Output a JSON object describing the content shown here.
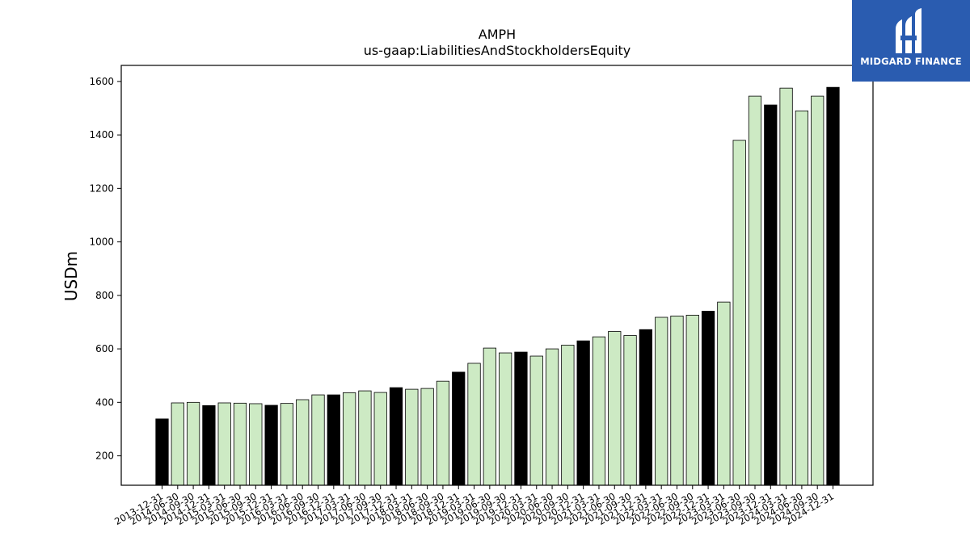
{
  "chart_data": {
    "type": "bar",
    "title": "AMPH",
    "subtitle": "us-gaap:LiabilitiesAndStockholdersEquity",
    "ylabel": "USDm",
    "xlabel": "",
    "ylim": [
      90,
      1660
    ],
    "yticks": [
      200,
      400,
      600,
      800,
      1000,
      1200,
      1400,
      1600
    ],
    "grid": false,
    "colors": {
      "annual": "#000000",
      "quarterly": "#cdeac4",
      "edge": "#000000"
    },
    "categories": [
      "2013-12-31",
      "2014-06-30",
      "2014-09-30",
      "2014-12-31",
      "2015-03-31",
      "2015-06-30",
      "2015-09-30",
      "2015-12-31",
      "2016-03-31",
      "2016-06-30",
      "2016-09-30",
      "2016-12-31",
      "2017-03-31",
      "2017-06-30",
      "2017-09-30",
      "2017-12-31",
      "2018-03-31",
      "2018-06-30",
      "2018-09-30",
      "2018-12-31",
      "2019-03-31",
      "2019-06-30",
      "2019-09-30",
      "2019-12-31",
      "2020-03-31",
      "2020-06-30",
      "2020-09-30",
      "2020-12-31",
      "2021-03-31",
      "2021-06-30",
      "2021-09-30",
      "2021-12-31",
      "2022-03-31",
      "2022-06-30",
      "2022-09-30",
      "2022-12-31",
      "2023-03-31",
      "2023-06-30",
      "2023-09-30",
      "2023-12-31",
      "2024-03-31",
      "2024-06-30",
      "2024-09-30",
      "2024-12-31"
    ],
    "values": [
      338,
      398,
      400,
      388,
      398,
      397,
      395,
      389,
      396,
      410,
      428,
      428,
      436,
      443,
      437,
      455,
      449,
      452,
      479,
      513,
      546,
      603,
      585,
      588,
      573,
      600,
      614,
      630,
      645,
      665,
      650,
      672,
      718,
      723,
      726,
      741,
      775,
      1380,
      1545,
      1512,
      1575,
      1490,
      1545,
      1578
    ],
    "annual": [
      true,
      false,
      false,
      true,
      false,
      false,
      false,
      true,
      false,
      false,
      false,
      true,
      false,
      false,
      false,
      true,
      false,
      false,
      false,
      true,
      false,
      false,
      false,
      true,
      false,
      false,
      false,
      true,
      false,
      false,
      false,
      true,
      false,
      false,
      false,
      true,
      false,
      false,
      false,
      true,
      false,
      false,
      false,
      true
    ]
  },
  "logo": {
    "text": "MIDGARD FINANCE",
    "icon": "midgard-logo-mark-icon"
  }
}
